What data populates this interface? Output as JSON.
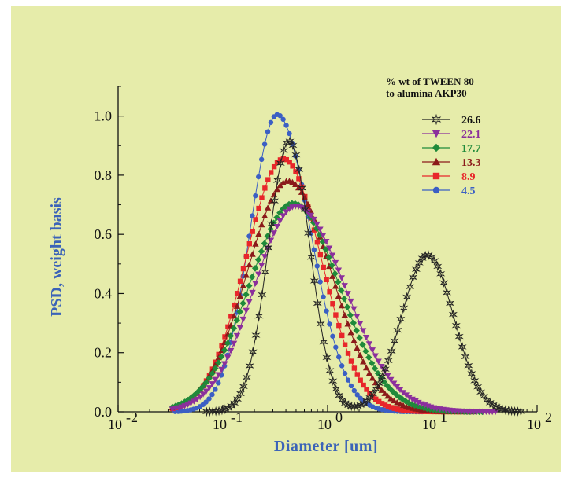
{
  "chart_data": {
    "type": "scatter",
    "xlabel": "Diameter [um]",
    "ylabel": "PSD, weight basis",
    "x_scale": "log",
    "xlim": [
      0.01,
      100
    ],
    "ylim": [
      0.0,
      1.1
    ],
    "x_ticks": [
      {
        "base": "10",
        "exp": "-2"
      },
      {
        "base": "10",
        "exp": "-1"
      },
      {
        "base": "10",
        "exp": "0"
      },
      {
        "base": "10",
        "exp": "1"
      },
      {
        "base": "10",
        "exp": "2"
      }
    ],
    "y_ticks": [
      "0.0",
      "0.2",
      "0.4",
      "0.6",
      "0.8",
      "1.0"
    ],
    "legend": {
      "title_line1": "% wt of TWEEN 80",
      "title_line2": "to alumina AKP30",
      "placement": "top-right"
    },
    "grid": false,
    "background_color": "#e6ecaa",
    "series": [
      {
        "name": "26.6",
        "color": "#222222",
        "marker": "star",
        "bimodal": true,
        "peaks": [
          {
            "x": 0.43,
            "y": 0.915,
            "sigma": 0.2
          },
          {
            "x": 9.0,
            "y": 0.53,
            "sigma": 0.25
          }
        ],
        "x_range": [
          0.07,
          70
        ]
      },
      {
        "name": "22.1",
        "color": "#8b2f9c",
        "marker": "triangle-down",
        "peaks": [
          {
            "x": 0.5,
            "y": 0.695,
            "sigma_left": 0.4,
            "sigma_right": 0.47
          }
        ],
        "x_range": [
          0.033,
          40
        ]
      },
      {
        "name": "17.7",
        "color": "#1f8a3a",
        "marker": "diamond",
        "peaks": [
          {
            "x": 0.47,
            "y": 0.705,
            "sigma_left": 0.42,
            "sigma_right": 0.44
          }
        ],
        "x_range": [
          0.033,
          30
        ]
      },
      {
        "name": "13.3",
        "color": "#8b1a1a",
        "marker": "triangle-up",
        "peaks": [
          {
            "x": 0.42,
            "y": 0.78,
            "sigma_left": 0.39,
            "sigma_right": 0.41
          }
        ],
        "x_range": [
          0.033,
          25
        ]
      },
      {
        "name": "8.9",
        "color": "#e8262a",
        "marker": "square",
        "peaks": [
          {
            "x": 0.38,
            "y": 0.855,
            "sigma_left": 0.36,
            "sigma_right": 0.36
          }
        ],
        "x_range": [
          0.033,
          18
        ]
      },
      {
        "name": "4.5",
        "color": "#3b5fc4",
        "marker": "circle",
        "peaks": [
          {
            "x": 0.33,
            "y": 1.005,
            "sigma_left": 0.26,
            "sigma_right": 0.32
          }
        ],
        "x_range": [
          0.035,
          8
        ]
      }
    ]
  }
}
